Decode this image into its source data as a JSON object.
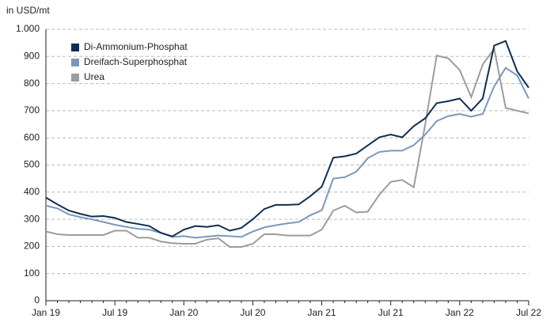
{
  "chart_data": {
    "type": "line",
    "y_axis_label": "in USD/mt",
    "categories": [
      "Jan 19",
      null,
      null,
      null,
      null,
      null,
      "Jul 19",
      null,
      null,
      null,
      null,
      null,
      "Jan 20",
      null,
      null,
      null,
      null,
      null,
      "Jul 20",
      null,
      null,
      null,
      null,
      null,
      "Jan 21",
      null,
      null,
      null,
      null,
      null,
      "Jul 21",
      null,
      null,
      null,
      null,
      null,
      "Jan 22",
      null,
      null,
      null,
      null,
      null,
      "Jul 22"
    ],
    "series": [
      {
        "name": "Di-Ammonium-Phosphat",
        "color": "#0d2e52",
        "values": [
          380,
          355,
          332,
          320,
          310,
          312,
          305,
          290,
          283,
          275,
          250,
          237,
          262,
          275,
          272,
          278,
          258,
          268,
          300,
          338,
          353,
          353,
          355,
          385,
          420,
          527,
          532,
          542,
          572,
          602,
          612,
          602,
          643,
          672,
          728,
          735,
          745,
          700,
          745,
          940,
          957,
          845,
          785
        ]
      },
      {
        "name": "Dreifach-Superphosphat",
        "color": "#7b98bb",
        "values": [
          350,
          340,
          318,
          308,
          300,
          290,
          280,
          272,
          265,
          262,
          250,
          235,
          238,
          232,
          236,
          240,
          238,
          235,
          255,
          270,
          278,
          285,
          290,
          315,
          333,
          450,
          455,
          475,
          525,
          548,
          553,
          553,
          573,
          612,
          662,
          680,
          688,
          678,
          688,
          790,
          858,
          830,
          745
        ]
      },
      {
        "name": "Urea",
        "color": "#9c9c9c",
        "values": [
          255,
          245,
          242,
          242,
          242,
          242,
          258,
          258,
          232,
          232,
          218,
          212,
          210,
          210,
          225,
          230,
          198,
          198,
          210,
          245,
          245,
          240,
          240,
          240,
          262,
          332,
          350,
          325,
          328,
          390,
          438,
          445,
          418,
          650,
          903,
          893,
          850,
          750,
          870,
          928,
          710,
          700,
          690
        ]
      }
    ],
    "ylim": [
      0,
      1000
    ],
    "yticks": [
      0,
      100,
      200,
      300,
      400,
      500,
      600,
      700,
      800,
      900,
      {
        "value": 1000,
        "label": "1.000"
      }
    ],
    "grid": true,
    "legend": "upper left"
  }
}
